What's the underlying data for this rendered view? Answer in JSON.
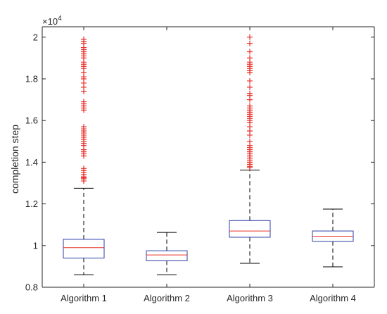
{
  "chart_data": {
    "type": "box",
    "title": "",
    "xlabel": "",
    "ylabel": "completion step",
    "exponent_label": {
      "base": "×10",
      "power": "4"
    },
    "ylim": [
      0.8,
      2.05
    ],
    "yticks": [
      {
        "value": 0.8,
        "label": "0.8"
      },
      {
        "value": 1.0,
        "label": "1"
      },
      {
        "value": 1.2,
        "label": "1.2"
      },
      {
        "value": 1.4,
        "label": "1.4"
      },
      {
        "value": 1.6,
        "label": "1.6"
      },
      {
        "value": 1.8,
        "label": "1.8"
      },
      {
        "value": 2.0,
        "label": "2"
      }
    ],
    "categories": [
      "Algorithm 1",
      "Algorithm 2",
      "Algorithm 3",
      "Algorithm 4"
    ],
    "boxes": [
      {
        "name": "Algorithm 1",
        "whisker_low": 0.86,
        "q1": 0.94,
        "median": 0.99,
        "q3": 1.03,
        "whisker_high": 1.275,
        "outliers": [
          1.31,
          1.32,
          1.325,
          1.33,
          1.34,
          1.35,
          1.36,
          1.37,
          1.43,
          1.44,
          1.45,
          1.46,
          1.48,
          1.49,
          1.5,
          1.51,
          1.52,
          1.53,
          1.54,
          1.55,
          1.56,
          1.57,
          1.65,
          1.66,
          1.67,
          1.68,
          1.69,
          1.74,
          1.76,
          1.78,
          1.8,
          1.81,
          1.83,
          1.85,
          1.86,
          1.87,
          1.88,
          1.9,
          1.91,
          1.92,
          1.93,
          1.94,
          1.95,
          1.97,
          1.98,
          1.99
        ]
      },
      {
        "name": "Algorithm 2",
        "whisker_low": 0.86,
        "q1": 0.927,
        "median": 0.955,
        "q3": 0.975,
        "whisker_high": 1.063,
        "outliers": []
      },
      {
        "name": "Algorithm 3",
        "whisker_low": 0.915,
        "q1": 1.04,
        "median": 1.07,
        "q3": 1.12,
        "whisker_high": 1.362,
        "outliers": [
          1.375,
          1.38,
          1.39,
          1.4,
          1.41,
          1.42,
          1.43,
          1.44,
          1.45,
          1.46,
          1.47,
          1.48,
          1.5,
          1.53,
          1.55,
          1.57,
          1.59,
          1.6,
          1.61,
          1.62,
          1.63,
          1.64,
          1.65,
          1.66,
          1.67,
          1.7,
          1.72,
          1.73,
          1.76,
          1.79,
          1.83,
          1.84,
          1.85,
          1.86,
          1.87,
          1.88,
          1.9,
          1.93,
          1.97,
          2.0
        ]
      },
      {
        "name": "Algorithm 4",
        "whisker_low": 0.898,
        "q1": 1.02,
        "median": 1.045,
        "q3": 1.07,
        "whisker_high": 1.175,
        "outliers": []
      }
    ],
    "colors": {
      "box": "#2b3ea8",
      "median": "#e8302a",
      "whisker": "#000000",
      "outlier": "#e8302a",
      "axis": "#262626"
    }
  }
}
